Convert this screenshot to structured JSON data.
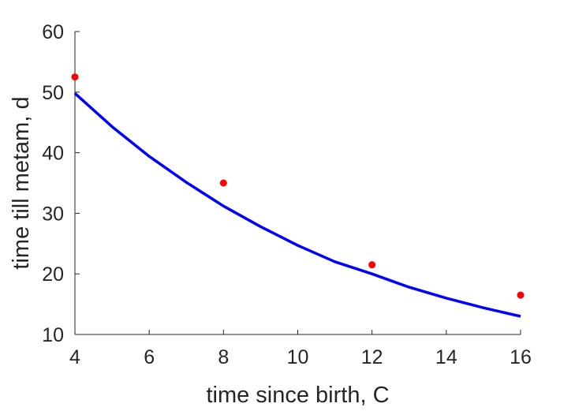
{
  "chart_data": {
    "type": "scatter",
    "title": "",
    "xlabel": "time since birth, C",
    "ylabel": "time till metam, d",
    "xlim": [
      4,
      16
    ],
    "ylim": [
      10,
      60
    ],
    "x_ticks": [
      4,
      6,
      8,
      10,
      12,
      14,
      16
    ],
    "y_ticks": [
      10,
      20,
      30,
      40,
      50,
      60
    ],
    "grid": false,
    "legend": "none",
    "series": [
      {
        "kind": "points",
        "marker": "filled-circle",
        "color": "#ff0000",
        "x": [
          4,
          8,
          12,
          16
        ],
        "y": [
          52.5,
          35,
          21.5,
          16.5
        ]
      },
      {
        "kind": "line",
        "color": "#0000ff",
        "x": [
          4,
          5,
          6,
          7,
          8,
          9,
          10,
          11,
          12,
          13,
          14,
          15,
          16
        ],
        "y": [
          49.8,
          44.3,
          39.4,
          35.1,
          31.2,
          27.8,
          24.7,
          22.0,
          20.0,
          17.8,
          16.0,
          14.4,
          13.0
        ]
      }
    ]
  }
}
